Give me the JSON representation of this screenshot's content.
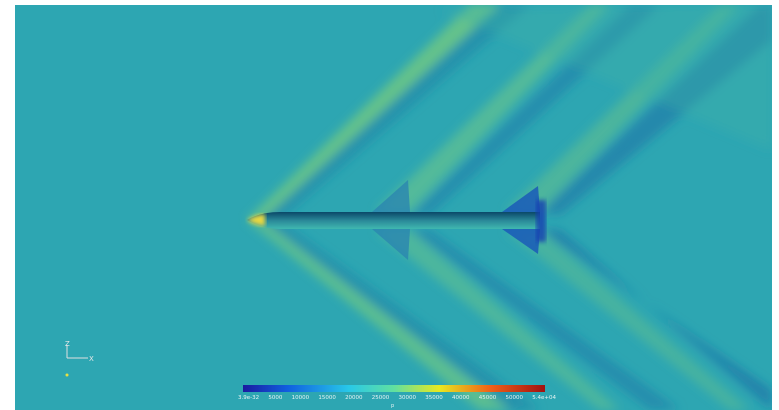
{
  "colorbar": {
    "labels": [
      "3.9e-32",
      "5000",
      "10000",
      "15000",
      "20000",
      "25000",
      "30000",
      "35000",
      "40000",
      "45000",
      "50000",
      "5.4e+04"
    ],
    "title": "p"
  },
  "axes": {
    "z": "Z",
    "x": "X"
  }
}
